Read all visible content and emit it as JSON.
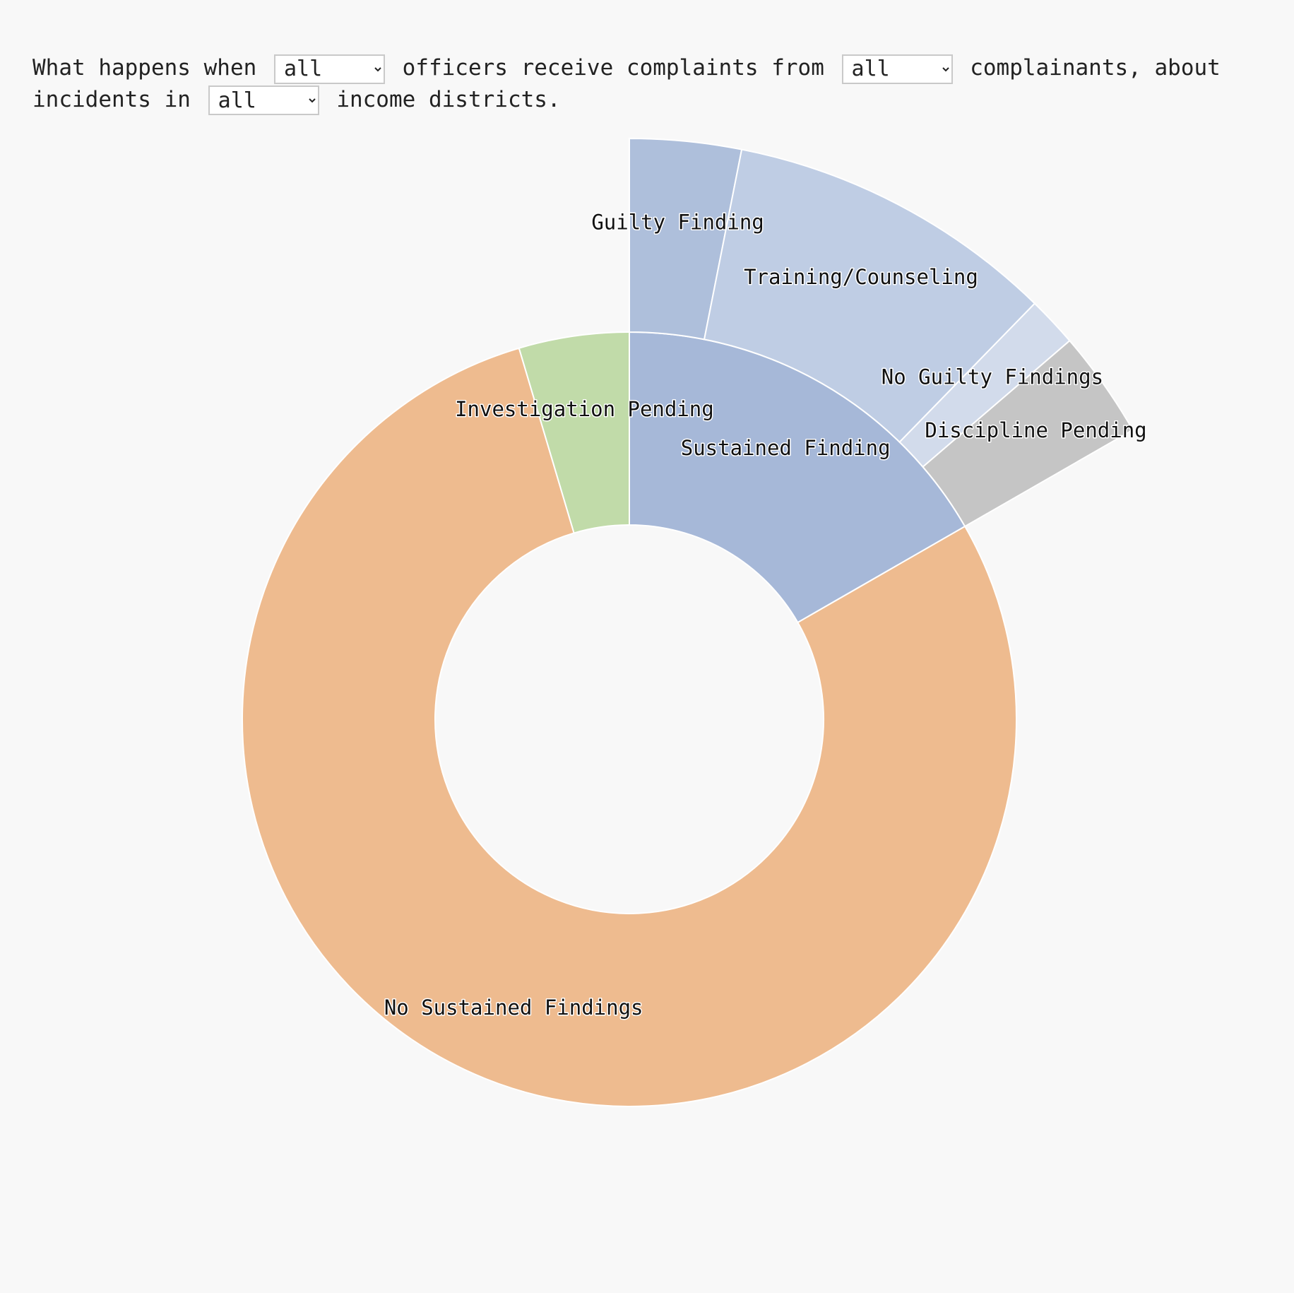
{
  "question": {
    "prefix": "What happens when",
    "mid1": "officers receive complaints from",
    "mid2": "complainants, about incidents in",
    "suffix": "income districts.",
    "officer_select": {
      "selected": "all",
      "options": [
        "all"
      ]
    },
    "complainant_select": {
      "selected": "all",
      "options": [
        "all"
      ]
    },
    "district_select": {
      "selected": "all",
      "options": [
        "all"
      ]
    }
  },
  "chart_data": {
    "type": "sunburst",
    "inner_ring": [
      {
        "label": "Sustained Finding",
        "value": 16.7,
        "color": "#a6b8d8"
      },
      {
        "label": "No Sustained Findings",
        "value": 78.7,
        "color": "#eebb8f"
      },
      {
        "label": "Investigation Pending",
        "value": 4.6,
        "color": "#c1dba9"
      }
    ],
    "outer_ring": [
      {
        "label": "Guilty Finding",
        "value": 3.1,
        "color": "#aebfdb"
      },
      {
        "label": "Training/Counseling",
        "value": 9.2,
        "color": "#bfcde4"
      },
      {
        "label": "No Guilty Findings",
        "value": 1.4,
        "color": "#d2dbeb"
      },
      {
        "label": "Discipline Pending",
        "value": 3.0,
        "color": "#c5c5c5"
      }
    ],
    "outer_ring_parent": "Sustained Finding"
  }
}
